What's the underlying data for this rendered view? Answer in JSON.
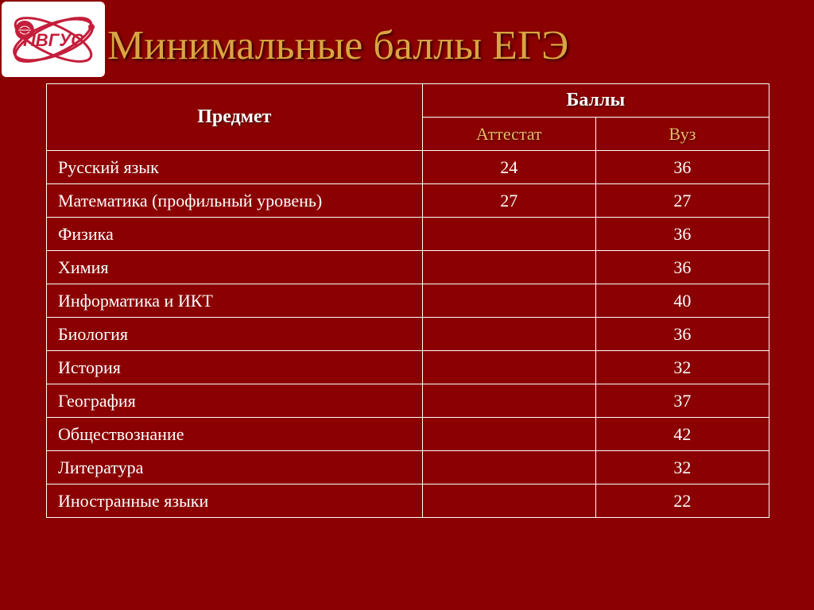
{
  "logo": {
    "text": "ПВГУС",
    "stroke": "#c41e3a",
    "fill": "#ffffff"
  },
  "title": "Минимальные баллы ЕГЭ",
  "headers": {
    "subject": "Предмет",
    "scores": "Баллы",
    "attestat": "Аттестат",
    "vuz": "Вуз"
  },
  "rows": [
    {
      "subject": "Русский язык",
      "attestat": "24",
      "vuz": "36"
    },
    {
      "subject": "Математика (профильный уровень)",
      "attestat": "27",
      "vuz": "27"
    },
    {
      "subject": "Физика",
      "attestat": "",
      "vuz": "36"
    },
    {
      "subject": "Химия",
      "attestat": "",
      "vuz": "36"
    },
    {
      "subject": "Информатика и ИКТ",
      "attestat": "",
      "vuz": "40"
    },
    {
      "subject": "Биология",
      "attestat": "",
      "vuz": "36"
    },
    {
      "subject": "История",
      "attestat": "",
      "vuz": "32"
    },
    {
      "subject": "География",
      "attestat": "",
      "vuz": "37"
    },
    {
      "subject": "Обществознание",
      "attestat": "",
      "vuz": "42"
    },
    {
      "subject": "Литература",
      "attestat": "",
      "vuz": "32"
    },
    {
      "subject": "Иностранные языки",
      "attestat": "",
      "vuz": "22"
    }
  ],
  "colors": {
    "background": "#8b0000",
    "title_color": "#d9a441",
    "border": "#ffffff",
    "text": "#ffffff",
    "subheader": "#e8b86a"
  }
}
